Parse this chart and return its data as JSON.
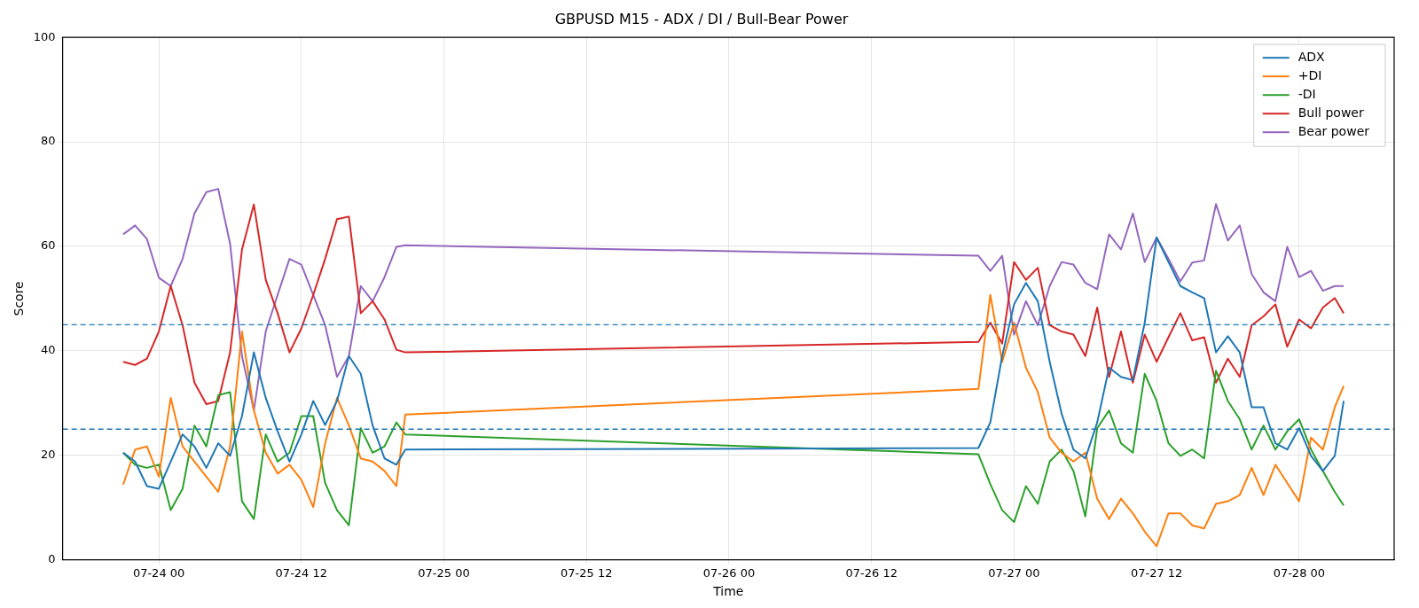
{
  "chart_data": {
    "type": "line",
    "title": "GBPUSD M15 - ADX / DI / Bull-Bear Power",
    "xlabel": "Time",
    "ylabel": "Score",
    "x": [
      "--07-23T21:00",
      "--07-23T22:00",
      "--07-23T23:00",
      "--07-24T00:00",
      "--07-24T01:00",
      "--07-24T02:00",
      "--07-24T03:00",
      "--07-24T04:00",
      "--07-24T05:00",
      "--07-24T06:00",
      "--07-24T07:00",
      "--07-24T08:00",
      "--07-24T09:00",
      "--07-24T10:00",
      "--07-24T11:00",
      "--07-24T12:00",
      "--07-24T13:00",
      "--07-24T14:00",
      "--07-24T15:00",
      "--07-24T16:00",
      "--07-24T17:00",
      "--07-24T18:00",
      "--07-24T19:00",
      "--07-24T20:00",
      "--07-24T20:45",
      "--07-26T21:00",
      "--07-26T22:00",
      "--07-26T23:00",
      "--07-27T00:00",
      "--07-27T01:00",
      "--07-27T02:00",
      "--07-27T03:00",
      "--07-27T04:00",
      "--07-27T05:00",
      "--07-27T06:00",
      "--07-27T07:00",
      "--07-27T08:00",
      "--07-27T09:00",
      "--07-27T10:00",
      "--07-27T11:00",
      "--07-27T12:00",
      "--07-27T13:00",
      "--07-27T14:00",
      "--07-27T15:00",
      "--07-27T16:00",
      "--07-27T17:00",
      "--07-27T18:00",
      "--07-27T19:00",
      "--07-27T20:00",
      "--07-27T21:00",
      "--07-27T22:00",
      "--07-27T23:00",
      "--07-28T00:00",
      "--07-28T01:00",
      "--07-28T02:00",
      "--07-28T03:00",
      "--07-28T03:45"
    ],
    "series": [
      {
        "name": "ADX",
        "color": "#1f77b4",
        "values": [
          20.5,
          18.8,
          14.1,
          13.6,
          18.8,
          24,
          21.7,
          17.6,
          22.3,
          19.9,
          27.5,
          39.7,
          31,
          24.6,
          18.8,
          24,
          30.4,
          25.8,
          30.4,
          39,
          35.6,
          25.7,
          19.4,
          18.2,
          21.1,
          21.4,
          26.3,
          39,
          48.9,
          53,
          49.5,
          37.9,
          28,
          21.1,
          19.4,
          26.3,
          36.8,
          35,
          34.4,
          45.4,
          61.7,
          57,
          52.4,
          51.2,
          50.1,
          39.7,
          42.8,
          39.7,
          29.2,
          29.2,
          22.3,
          21.1,
          25.2,
          19.9,
          17,
          19.9,
          30.4
        ]
      },
      {
        "name": "+DI",
        "color": "#ff7f0e",
        "values": [
          14.4,
          21.1,
          21.7,
          15.9,
          31,
          21.7,
          18.8,
          15.9,
          13,
          21.7,
          43.7,
          28.6,
          20.5,
          16.5,
          18.2,
          15.3,
          10.1,
          22.3,
          31,
          25.7,
          19.4,
          18.8,
          17,
          14.1,
          27.8,
          32.7,
          50.7,
          37.9,
          45.4,
          36.8,
          32.1,
          23.4,
          20.5,
          18.8,
          20.5,
          11.7,
          7.8,
          11.7,
          8.9,
          5.4,
          2.6,
          8.9,
          8.9,
          6.6,
          6,
          10.7,
          11.2,
          12.4,
          17.6,
          12.4,
          18.2,
          14.7,
          11.2,
          23.4,
          21.1,
          29.2,
          33.3
        ]
      },
      {
        "name": "-DI",
        "color": "#2ca02c",
        "values": [
          20.5,
          18.2,
          17.6,
          18.2,
          9.5,
          13.6,
          25.7,
          21.7,
          31.5,
          32.1,
          11.2,
          7.8,
          24,
          18.8,
          20.5,
          27.5,
          27.5,
          14.7,
          9.5,
          6.6,
          25.2,
          20.5,
          21.7,
          26.3,
          24,
          20.2,
          14.5,
          9.5,
          7.2,
          14.1,
          10.7,
          18.8,
          21.1,
          17,
          8.3,
          25.2,
          28.6,
          22.3,
          20.5,
          35.6,
          30.4,
          22.3,
          19.9,
          21.1,
          19.4,
          36.2,
          30.4,
          26.9,
          21.1,
          25.7,
          21.1,
          24.6,
          26.9,
          21.1,
          17,
          13,
          10.4
        ]
      },
      {
        "name": "Bull power",
        "color": "#d62728",
        "values": [
          37.9,
          37.3,
          38.5,
          43.7,
          52.4,
          44.9,
          33.9,
          29.8,
          30.4,
          39.7,
          59.4,
          68,
          53.6,
          47.2,
          39.7,
          44.3,
          50.7,
          57.6,
          65.2,
          65.7,
          47.2,
          49.5,
          46,
          40.2,
          39.7,
          41.7,
          45.4,
          41.4,
          57,
          53.6,
          55.9,
          44.9,
          43.7,
          43.1,
          39,
          48.3,
          35,
          43.7,
          33.9,
          43.1,
          37.9,
          42.6,
          47.2,
          42,
          42.6,
          33.9,
          38.5,
          35,
          44.9,
          46.6,
          48.9,
          40.8,
          46,
          44.3,
          48.3,
          50.1,
          47.2
        ]
      },
      {
        "name": "Bear power",
        "color": "#9467bd",
        "values": [
          62.3,
          64,
          61.4,
          54,
          52.4,
          57.6,
          66.3,
          70.4,
          71,
          60.5,
          39,
          28.6,
          43.7,
          50.7,
          57.6,
          56.5,
          50.7,
          44.9,
          35,
          39,
          52.4,
          49.5,
          54.1,
          59.9,
          60.2,
          58.2,
          55.3,
          58.2,
          43.1,
          49.5,
          44.9,
          52.4,
          57,
          56.5,
          53,
          51.8,
          62.3,
          59.4,
          66.3,
          57,
          61.7,
          57.6,
          53.3,
          56.9,
          57.3,
          68.1,
          61.1,
          64,
          54.7,
          51.2,
          49.5,
          59.9,
          54.1,
          55.3,
          51.5,
          52.4,
          52.4
        ]
      }
    ],
    "xlim": [
      "--07-23T15:54",
      "--07-28T08:00"
    ],
    "xticks": [
      {
        "value": "--07-24T00:00",
        "label": "07-24 00"
      },
      {
        "value": "--07-24T12:00",
        "label": "07-24 12"
      },
      {
        "value": "--07-25T00:00",
        "label": "07-25 00"
      },
      {
        "value": "--07-25T12:00",
        "label": "07-25 12"
      },
      {
        "value": "--07-26T00:00",
        "label": "07-26 00"
      },
      {
        "value": "--07-26T12:00",
        "label": "07-26 12"
      },
      {
        "value": "--07-27T00:00",
        "label": "07-27 00"
      },
      {
        "value": "--07-27T12:00",
        "label": "07-27 12"
      },
      {
        "value": "--07-28T00:00",
        "label": "07-28 00"
      }
    ],
    "ylim": [
      0,
      100
    ],
    "yticks": [
      0,
      20,
      40,
      60,
      80,
      100
    ],
    "ref_lines": [
      {
        "axis": "y",
        "value": 45,
        "color": "#1f77b4",
        "line_style": "dashed"
      },
      {
        "axis": "y",
        "value": 25,
        "color": "#1f77b4",
        "line_style": "dashed"
      }
    ],
    "grid": true,
    "legend": "top right",
    "marker": "none",
    "line_style": "solid"
  }
}
